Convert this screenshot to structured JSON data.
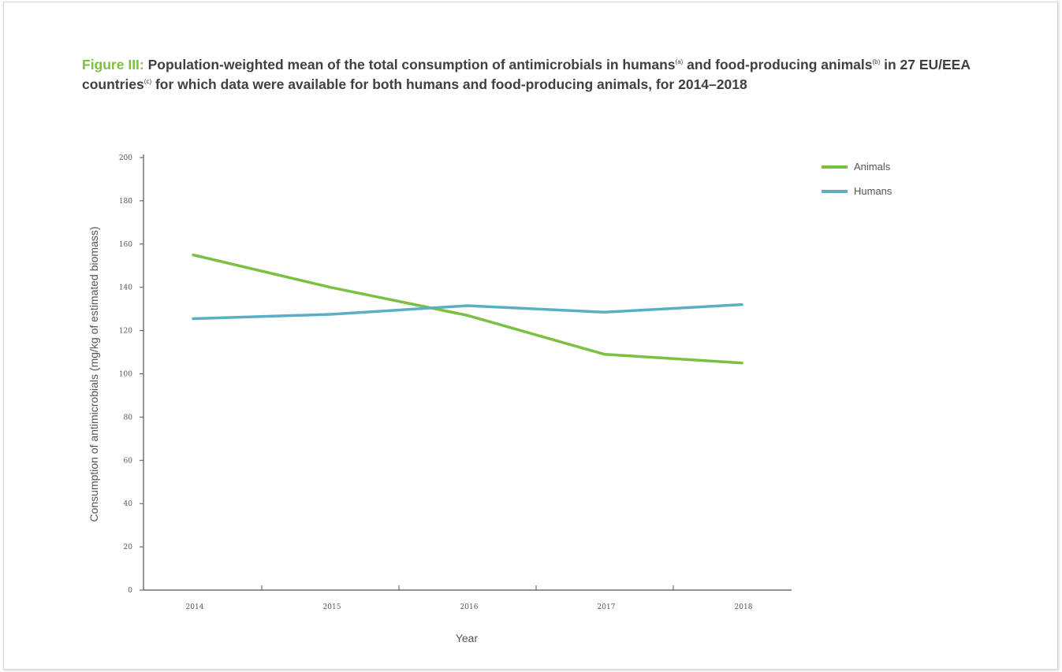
{
  "caption": {
    "figure_label": "Figure III:",
    "text_1": " Population-weighted mean of the total consumption of antimicrobials in humans",
    "sup_a": "(a)",
    "text_2": " and food-producing animals",
    "sup_b": "(b)",
    "text_3": " in 27 EU/EEA countries",
    "sup_c": "(c)",
    "text_4": " for which data were available for both humans and food-producing animals, for 2014–2018"
  },
  "chart_data": {
    "type": "line",
    "x": [
      "2014",
      "2015",
      "2016",
      "2017",
      "2018"
    ],
    "series": [
      {
        "name": "Animals",
        "color": "#7ac143",
        "values": [
          155,
          140,
          127,
          109,
          105
        ]
      },
      {
        "name": "Humans",
        "color": "#5aafc4",
        "values": [
          125.5,
          127.5,
          131.5,
          128.5,
          132
        ]
      }
    ],
    "xlabel": "Year",
    "ylabel": "Consumption of antimicrobials (mg/kg of estimated biomass)",
    "ylim": [
      0,
      200
    ],
    "yticks": [
      0,
      20,
      40,
      60,
      80,
      100,
      120,
      140,
      160,
      180,
      200
    ],
    "grid": false,
    "legend_position": "top-right"
  }
}
